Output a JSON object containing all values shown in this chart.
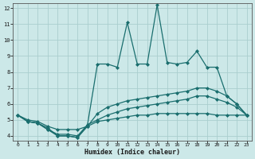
{
  "bg_color": "#cce8e8",
  "grid_color": "#aacece",
  "line_color": "#1a6e6e",
  "line_width": 0.9,
  "marker": "D",
  "marker_size": 2.0,
  "xlabel": "Humidex (Indice chaleur)",
  "xlim": [
    -0.5,
    23.5
  ],
  "ylim": [
    3.7,
    12.3
  ],
  "yticks": [
    4,
    5,
    6,
    7,
    8,
    9,
    10,
    11,
    12
  ],
  "xticks": [
    0,
    1,
    2,
    3,
    4,
    5,
    6,
    7,
    8,
    9,
    10,
    11,
    12,
    13,
    14,
    15,
    16,
    17,
    18,
    19,
    20,
    21,
    22,
    23
  ],
  "series": [
    {
      "x": [
        0,
        1,
        2,
        3,
        4,
        5,
        6,
        7,
        8,
        9,
        10,
        11,
        12,
        13,
        14,
        15,
        16,
        17,
        18,
        19,
        20,
        21,
        22,
        23
      ],
      "y": [
        5.3,
        4.9,
        4.8,
        4.5,
        4.0,
        4.0,
        3.9,
        4.7,
        8.5,
        8.5,
        8.3,
        11.1,
        8.5,
        8.5,
        12.2,
        8.6,
        8.5,
        8.6,
        9.3,
        8.3,
        8.3,
        6.5,
        6.0,
        5.3
      ]
    },
    {
      "x": [
        0,
        1,
        2,
        3,
        4,
        5,
        6,
        7,
        8,
        9,
        10,
        11,
        12,
        13,
        14,
        15,
        16,
        17,
        18,
        19,
        20,
        21,
        22,
        23
      ],
      "y": [
        5.3,
        4.9,
        4.8,
        4.4,
        4.0,
        4.0,
        3.9,
        4.6,
        5.4,
        5.8,
        6.0,
        6.2,
        6.3,
        6.4,
        6.5,
        6.6,
        6.7,
        6.8,
        7.0,
        7.0,
        6.8,
        6.5,
        6.0,
        5.3
      ]
    },
    {
      "x": [
        0,
        1,
        2,
        3,
        4,
        5,
        6,
        7,
        8,
        9,
        10,
        11,
        12,
        13,
        14,
        15,
        16,
        17,
        18,
        19,
        20,
        21,
        22,
        23
      ],
      "y": [
        5.3,
        4.9,
        4.8,
        4.4,
        4.1,
        4.1,
        4.0,
        4.7,
        5.0,
        5.3,
        5.5,
        5.7,
        5.8,
        5.9,
        6.0,
        6.1,
        6.2,
        6.3,
        6.5,
        6.5,
        6.3,
        6.1,
        5.8,
        5.3
      ]
    },
    {
      "x": [
        0,
        1,
        2,
        3,
        4,
        5,
        6,
        7,
        8,
        9,
        10,
        11,
        12,
        13,
        14,
        15,
        16,
        17,
        18,
        19,
        20,
        21,
        22,
        23
      ],
      "y": [
        5.3,
        5.0,
        4.9,
        4.6,
        4.4,
        4.4,
        4.4,
        4.6,
        4.9,
        5.0,
        5.1,
        5.2,
        5.3,
        5.3,
        5.4,
        5.4,
        5.4,
        5.4,
        5.4,
        5.4,
        5.3,
        5.3,
        5.3,
        5.3
      ]
    }
  ]
}
